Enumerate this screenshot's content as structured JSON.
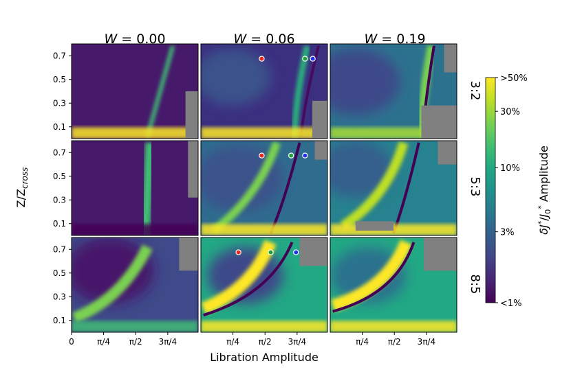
{
  "chart_data": {
    "type": "heatmap",
    "columns": [
      {
        "label": "W = 0.00",
        "var": "W",
        "eq": " = 0.00"
      },
      {
        "label": "W = 0.06",
        "var": "W",
        "eq": " = 0.06"
      },
      {
        "label": "W = 0.19",
        "var": "W",
        "eq": " = 0.19"
      }
    ],
    "rows": [
      "3:2",
      "5:3",
      "8:5"
    ],
    "xlabel": "Libration Amplitude",
    "ylabel": "Z/Z_cross",
    "ylabel_main": "Z/Z",
    "ylabel_sub": "cross",
    "xticks": [
      {
        "value": 0,
        "label": "0"
      },
      {
        "value": 0.785,
        "label": "π/4"
      },
      {
        "value": 1.571,
        "label": "π/2"
      },
      {
        "value": 2.356,
        "label": "3π/4"
      }
    ],
    "xlim": [
      0,
      3.1
    ],
    "yticks": [
      0.1,
      0.3,
      0.5,
      0.7
    ],
    "ytick_labels": [
      "0.1",
      "0.3",
      "0.5",
      "0.7"
    ],
    "ylim": [
      0.0,
      0.8
    ],
    "colorbar": {
      "label": "δJ*/J0* Amplitude",
      "label_parts": {
        "prefix": "δ",
        "J": "J",
        "star": "*",
        "slash": "/",
        "J0": "J",
        "sub0": "0",
        "star2": "*",
        "suffix": " Amplitude"
      },
      "ticks": [
        {
          "label": ">50%",
          "frac": 1.0
        },
        {
          "label": "30%",
          "frac": 0.85
        },
        {
          "label": "10%",
          "frac": 0.6
        },
        {
          "label": "3%",
          "frac": 0.315
        },
        {
          "label": "<1%",
          "frac": 0.0
        }
      ],
      "colormap": "viridis",
      "scale": "log"
    },
    "masked_color": "#808080",
    "markers": [
      {
        "row": 0,
        "col": 1,
        "points": [
          {
            "x": 1.49,
            "y": 0.675,
            "color": "#e8261f"
          },
          {
            "x": 2.55,
            "y": 0.675,
            "color": "#20a032"
          },
          {
            "x": 2.74,
            "y": 0.675,
            "color": "#1f33e8"
          }
        ]
      },
      {
        "row": 1,
        "col": 1,
        "points": [
          {
            "x": 1.49,
            "y": 0.675,
            "color": "#e8261f"
          },
          {
            "x": 2.21,
            "y": 0.675,
            "color": "#20a032"
          },
          {
            "x": 2.55,
            "y": 0.675,
            "color": "#1f33e8"
          }
        ]
      },
      {
        "row": 2,
        "col": 1,
        "points": [
          {
            "x": 0.92,
            "y": 0.675,
            "color": "#e8261f"
          },
          {
            "x": 1.71,
            "y": 0.675,
            "color": "#20a032"
          },
          {
            "x": 2.33,
            "y": 0.675,
            "color": "#1f33e8"
          }
        ]
      }
    ]
  }
}
